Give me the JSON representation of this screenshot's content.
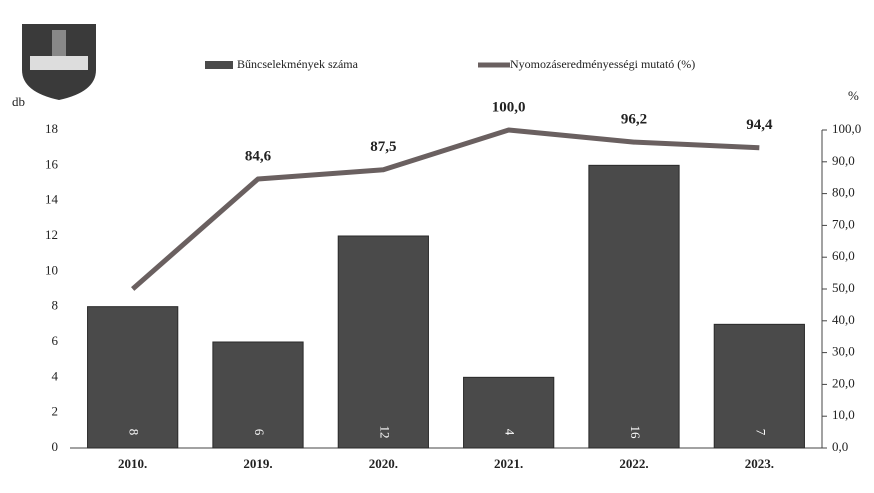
{
  "chart_data": {
    "type": "bar",
    "y_label": "db",
    "y2_label": "%",
    "categories": [
      "2010.",
      "2019.",
      "2020.",
      "2021.",
      "2022.",
      "2023."
    ],
    "series": [
      {
        "name": "Bűncselekmények száma",
        "type": "bar",
        "color": "#4a4a4a",
        "values": [
          8,
          6,
          12,
          4,
          16,
          7
        ]
      },
      {
        "name": "Nyomozáseredményességi mutató (%)",
        "type": "line",
        "axis": "y2",
        "color": "#6a6060",
        "values": [
          50,
          84.6,
          87.5,
          100,
          96.2,
          94.4
        ],
        "value_labels": [
          null,
          "84,6",
          "87,5",
          "100,0",
          "96,2",
          "94,4"
        ]
      }
    ],
    "ylim": [
      0,
      18
    ],
    "yticks": [
      0,
      2,
      4,
      6,
      8,
      10,
      12,
      14,
      16,
      18
    ],
    "y2lim": [
      0,
      100
    ],
    "y2ticks": [
      {
        "value": 0,
        "label": "0,0"
      },
      {
        "value": 10,
        "label": "10,0"
      },
      {
        "value": 20,
        "label": "20,0"
      },
      {
        "value": 30,
        "label": "30,0"
      },
      {
        "value": 40,
        "label": "40,0"
      },
      {
        "value": 50,
        "label": "50,0"
      },
      {
        "value": 60,
        "label": "60,0"
      },
      {
        "value": 70,
        "label": "70,0"
      },
      {
        "value": 80,
        "label": "80,0"
      },
      {
        "value": 90,
        "label": "90,0"
      },
      {
        "value": 100,
        "label": "100,0"
      }
    ],
    "grid": false
  }
}
